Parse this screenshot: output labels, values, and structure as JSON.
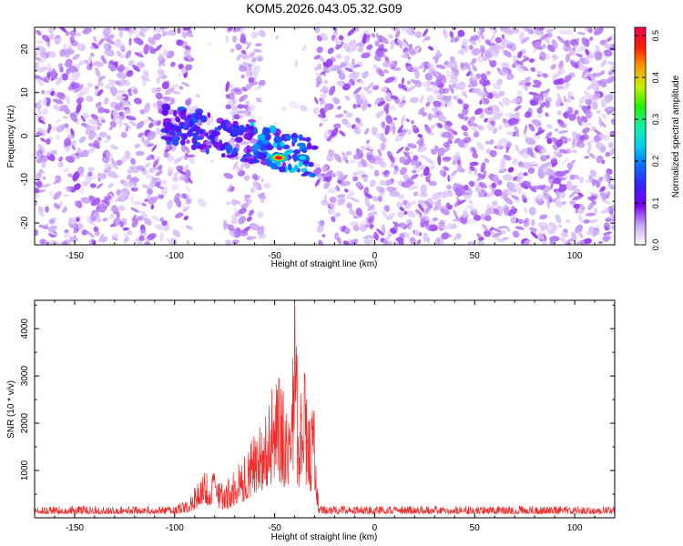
{
  "page": {
    "title": "KOM5.2026.043.05.32.G09"
  },
  "chart_data": [
    {
      "type": "heatmap",
      "title": "KOM5.2026.043.05.32.G09",
      "xlabel": "Height of straight line (km)",
      "ylabel": "Frequency (Hz)",
      "xlim": [
        -170,
        120
      ],
      "ylim": [
        -25,
        25
      ],
      "xticks": [
        -150,
        -100,
        -50,
        0,
        50,
        100
      ],
      "yticks": [
        -20,
        -10,
        0,
        10,
        20
      ],
      "colorbar": {
        "label": "Normalized spectral amplitude",
        "range": [
          0,
          0.52
        ],
        "ticks": [
          0,
          0.1,
          0.2,
          0.3,
          0.4,
          0.5
        ],
        "tick_labels": [
          "0.0",
          "0.1",
          "0.2",
          "0.3",
          "0.4",
          "0.5"
        ],
        "colormap": [
          "#ffffff",
          "#c9a6f7",
          "#7a00f0",
          "#3a1fff",
          "#0b6dff",
          "#00d2f0",
          "#14f2a2",
          "#25f000",
          "#c8ef00",
          "#ff9a00",
          "#ff1a00",
          "#ff0050"
        ]
      },
      "gap_regions_km": [
        [
          -92,
          -75
        ],
        [
          -56,
          -30
        ]
      ],
      "signal_region_km": [
        -105,
        -30
      ],
      "signal_frequency_hz": [
        -8,
        7
      ],
      "peak": {
        "x": -48,
        "y": -5,
        "value": 0.52
      }
    },
    {
      "type": "line",
      "xlabel": "Height of straight line (km)",
      "ylabel": "SNR (10 * v/v)",
      "xlim": [
        -170,
        120
      ],
      "ylim": [
        0,
        4600
      ],
      "xticks": [
        -150,
        -100,
        -50,
        0,
        50,
        100
      ],
      "yticks": [
        1000,
        2000,
        3000,
        4000
      ],
      "series": [
        {
          "name": "SNR",
          "color": "#f22b2b",
          "envelope_x": [
            -170,
            -100,
            -95,
            -90,
            -85,
            -80,
            -75,
            -70,
            -65,
            -60,
            -55,
            -50,
            -45,
            -42,
            -40,
            -38,
            -35,
            -33,
            -30,
            -28,
            0,
            50,
            120
          ],
          "envelope_max": [
            250,
            250,
            380,
            650,
            1000,
            950,
            650,
            1100,
            1300,
            2000,
            2350,
            2950,
            2700,
            2400,
            4600,
            2800,
            3050,
            2500,
            2400,
            250,
            250,
            250,
            250
          ],
          "envelope_base": [
            80,
            80,
            100,
            160,
            280,
            200,
            150,
            250,
            350,
            500,
            600,
            700,
            650,
            600,
            800,
            650,
            700,
            500,
            450,
            80,
            80,
            80,
            80
          ]
        }
      ]
    }
  ]
}
